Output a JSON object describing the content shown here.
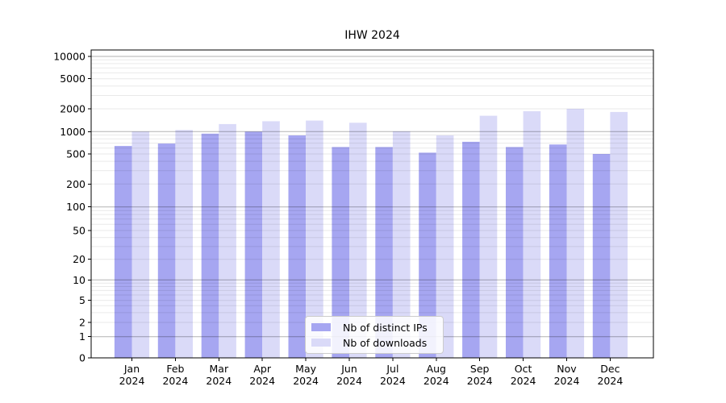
{
  "title": "IHW 2024",
  "colors": {
    "bar_dark": "#a6a6f1",
    "bar_light": "#dadaf8",
    "major_gridline": "#b2b2b2",
    "minor_gridline": "#e9e9e9",
    "axis": "#000000",
    "text": "#000000"
  },
  "legend": {
    "items": [
      {
        "label": "Nb of distinct IPs",
        "color_key": "bar_dark"
      },
      {
        "label": "Nb of downloads",
        "color_key": "bar_light"
      }
    ]
  },
  "chart_data": {
    "type": "bar",
    "title": "IHW 2024",
    "categories": [
      "Jan 2024",
      "Feb 2024",
      "Mar 2024",
      "Apr 2024",
      "May 2024",
      "Jun 2024",
      "Jul 2024",
      "Aug 2024",
      "Sep 2024",
      "Oct 2024",
      "Nov 2024",
      "Dec 2024"
    ],
    "series": [
      {
        "name": "Nb of distinct IPs",
        "values": [
          640,
          690,
          940,
          1000,
          890,
          620,
          620,
          520,
          730,
          620,
          670,
          500
        ]
      },
      {
        "name": "Nb of downloads",
        "values": [
          1000,
          1050,
          1260,
          1370,
          1400,
          1310,
          1010,
          890,
          1620,
          1860,
          2000,
          1820
        ]
      }
    ],
    "xlabel": "",
    "ylabel": "",
    "yscale": "symlog",
    "ylim": [
      0,
      10000
    ],
    "ytick_values": [
      10000,
      5000,
      2000,
      1000,
      500,
      200,
      100,
      50,
      20,
      10,
      5,
      2,
      1,
      0
    ],
    "grid": true,
    "legend_position": "lower center"
  }
}
